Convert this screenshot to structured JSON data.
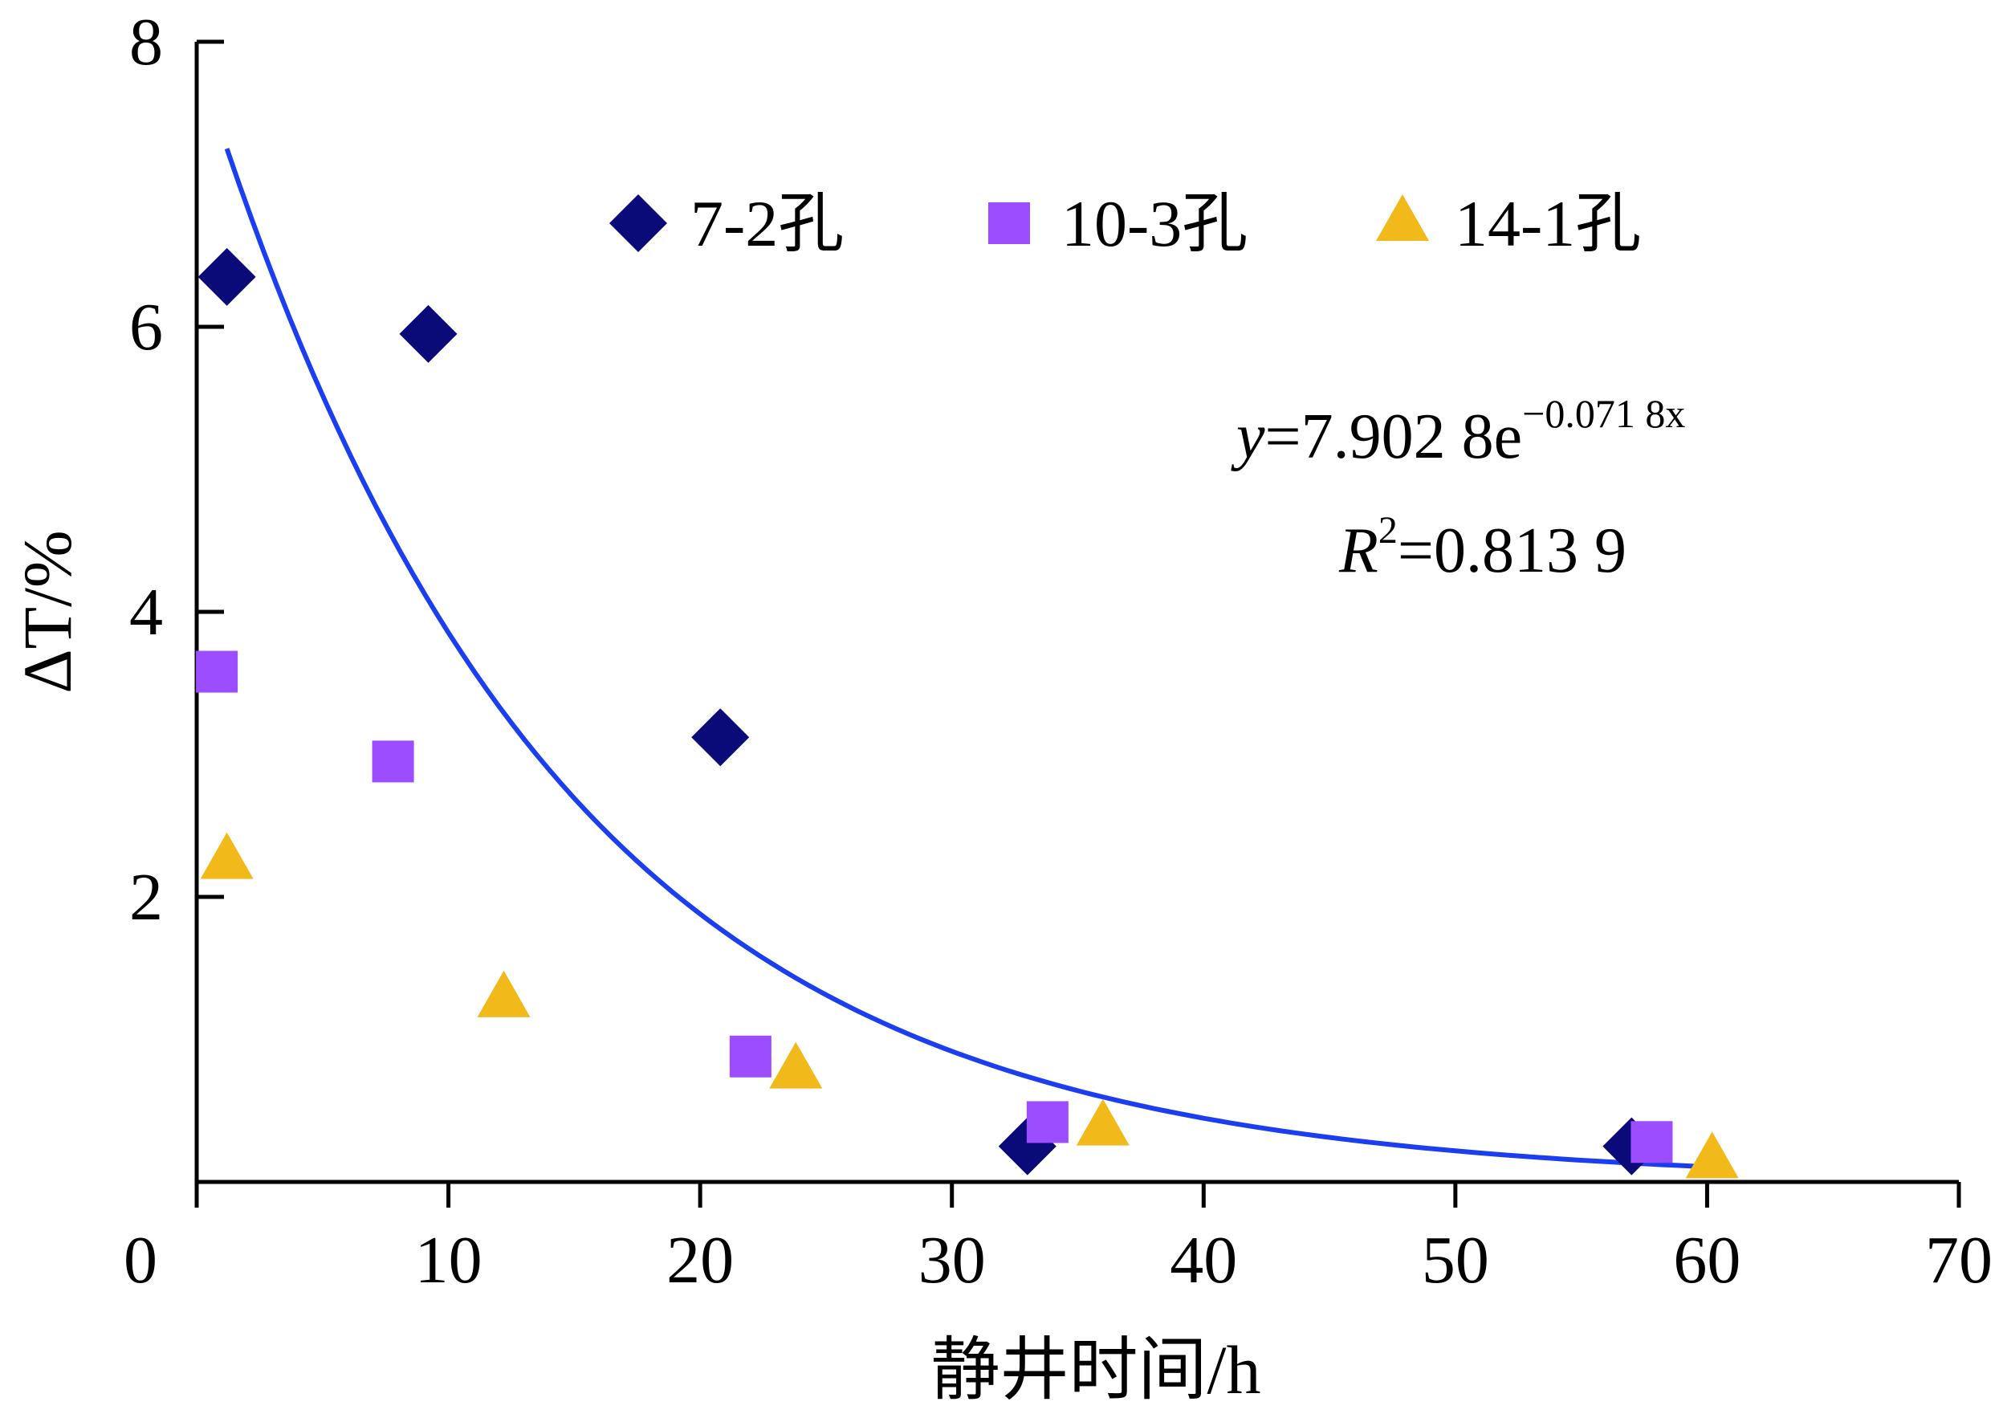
{
  "chart_data": {
    "type": "scatter",
    "xlabel": "静井时间/h",
    "ylabel": "ΔT/%",
    "xlim": [
      0,
      70
    ],
    "ylim": [
      0,
      8
    ],
    "x_ticks": [
      "0",
      "10",
      "20",
      "30",
      "40",
      "50",
      "60",
      "70"
    ],
    "y_ticks": [
      "2",
      "4",
      "6",
      "8"
    ],
    "grid": false,
    "legend_position": "top",
    "series": [
      {
        "name": "7-2孔",
        "marker": "diamond",
        "color": "#0a0a78",
        "x": [
          1.2,
          9.2,
          20.8,
          33.0,
          57.0
        ],
        "y": [
          6.35,
          5.95,
          3.12,
          0.25,
          0.25
        ]
      },
      {
        "name": "10-3孔",
        "marker": "square",
        "color": "#9b4dff",
        "x": [
          0.8,
          7.8,
          22.0,
          33.8,
          57.8
        ],
        "y": [
          3.58,
          2.95,
          0.88,
          0.42,
          0.28
        ]
      },
      {
        "name": "14-1孔",
        "marker": "triangle",
        "color": "#f2b91a",
        "x": [
          1.2,
          12.2,
          23.8,
          36.0,
          60.2
        ],
        "y": [
          2.25,
          1.28,
          0.78,
          0.38,
          0.15
        ]
      }
    ],
    "trendline": {
      "color": "#1a3ef0",
      "equation_prefix": "y",
      "equation_body": "=7.902 8e",
      "equation_exponent": "−0.071 8x",
      "r2_prefix": "R",
      "r2_super": "2",
      "r2_body": "=0.813 9",
      "a": 7.9028,
      "b": -0.0718,
      "x_range": [
        1.2,
        60.2
      ]
    }
  }
}
